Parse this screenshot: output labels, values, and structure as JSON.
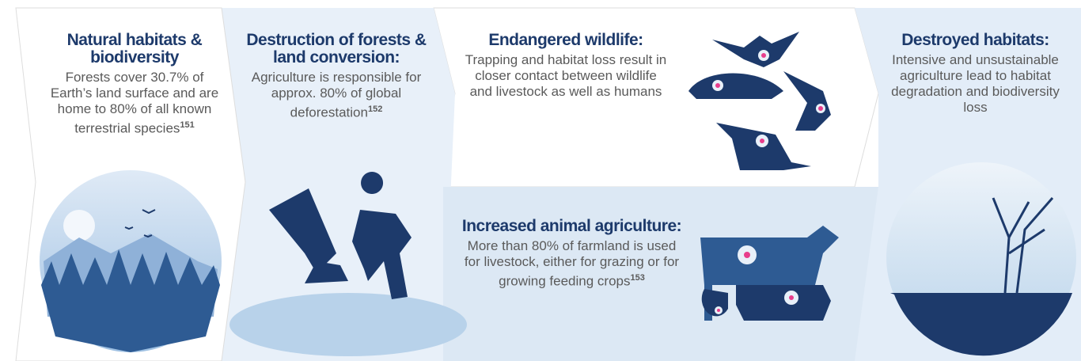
{
  "panels": [
    {
      "title": "Natural habitats & biodiversity",
      "body": "Forests cover 30.7% of Earth’s land surface and are home to 80% of all known terrestrial species",
      "note": "151"
    },
    {
      "title": "Destruction of forests & land conversion:",
      "body": "Agriculture is responsible for approx. 80% of global deforestation",
      "note": "152"
    },
    {
      "title": "Endangered wildlife:",
      "body": "Trapping and habitat loss result in closer contact between wildlife and livestock as well as humans"
    },
    {
      "title": "Increased animal agriculture:",
      "body": "More than 80% of farmland is used for livestock, either for grazing or for growing feeding crops",
      "note": "153"
    },
    {
      "title": "Destroyed habitats:",
      "body": "Intensive and unsustainable agriculture lead to habitat degradation and biodiversity loss"
    }
  ]
}
